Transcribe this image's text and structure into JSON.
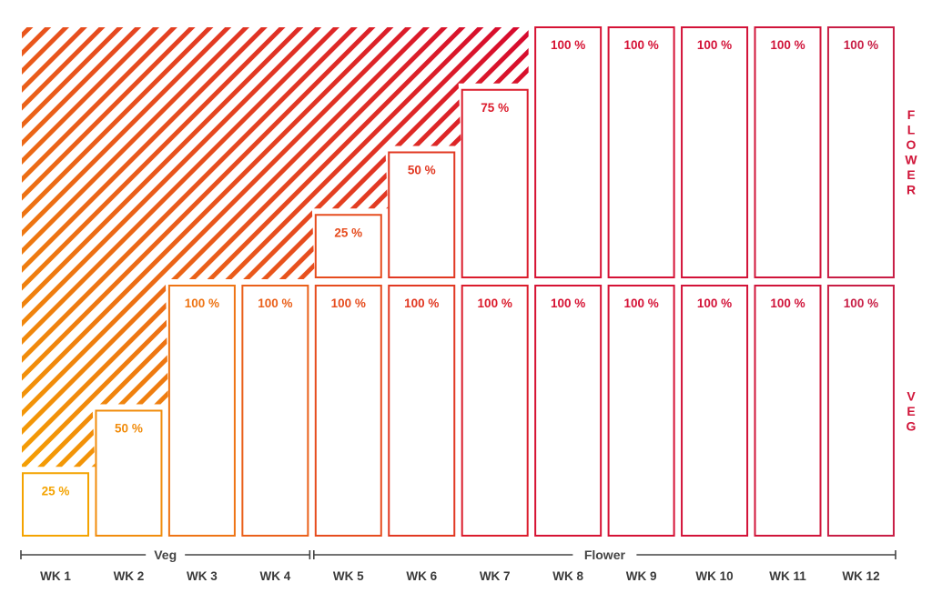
{
  "chart_data": {
    "type": "bar",
    "categories": [
      "WK 1",
      "WK 2",
      "WK 3",
      "WK 4",
      "WK 5",
      "WK 6",
      "WK 7",
      "WK 8",
      "WK 9",
      "WK 10",
      "WK 11",
      "WK 12"
    ],
    "series": [
      {
        "name": "VEG",
        "values": [
          25,
          50,
          100,
          100,
          100,
          100,
          100,
          100,
          100,
          100,
          100,
          100
        ]
      },
      {
        "name": "FLOWER",
        "values": [
          null,
          null,
          null,
          null,
          25,
          50,
          75,
          100,
          100,
          100,
          100,
          100
        ]
      }
    ],
    "value_suffix": " %",
    "ylim": [
      0,
      100
    ],
    "stages": [
      {
        "label": "Veg",
        "from": "WK 1",
        "to": "WK 4"
      },
      {
        "label": "Flower",
        "from": "WK 5",
        "to": "WK 12"
      }
    ],
    "side_labels": [
      "FLOWER",
      "VEG"
    ],
    "remaining_area": "diagonal hatch",
    "grid": false,
    "column_colors": [
      "#f4a300",
      "#f18c0c",
      "#ee7414",
      "#ea601a",
      "#e64c1e",
      "#e13822",
      "#db1c2c",
      "#d61233",
      "#d51236",
      "#d31238",
      "#d0143a",
      "#c81e45"
    ],
    "axis_color": "#444444"
  }
}
